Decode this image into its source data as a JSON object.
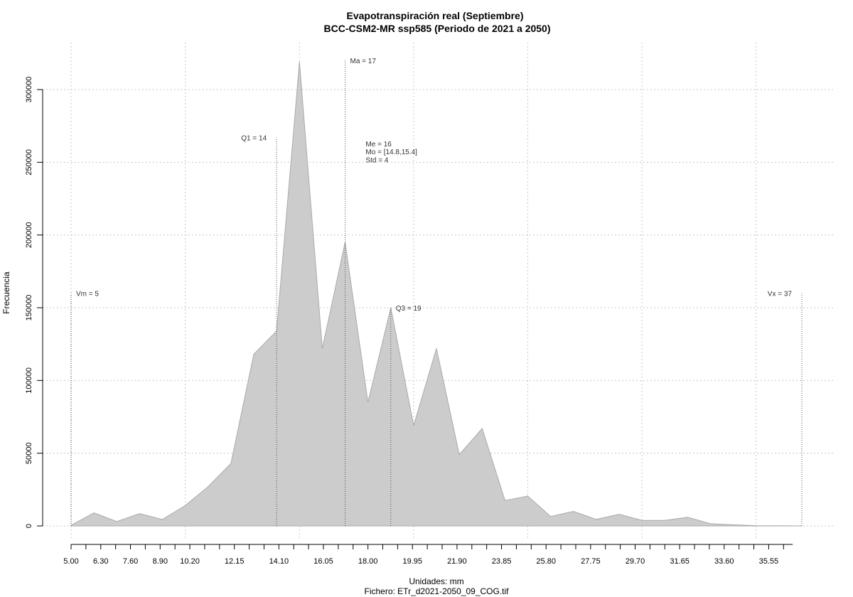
{
  "chart_data": {
    "type": "area",
    "title": "Evapotranspiración real (Septiembre)",
    "subtitle": "BCC-CSM2-MR ssp585 (Periodo de 2021 a 2050)",
    "xlabel": "Unidades: mm",
    "caption": "Fichero: ETr_d2021-2050_09_COG.tif",
    "ylabel": "Frecuencia",
    "xlim": [
      5.0,
      37.0
    ],
    "ylim": [
      0,
      320000
    ],
    "x_tick_labels": [
      "5.00",
      "6.30",
      "7.60",
      "8.90",
      "10.20",
      "12.15",
      "14.10",
      "16.05",
      "18.00",
      "19.95",
      "21.90",
      "23.85",
      "25.80",
      "27.75",
      "29.70",
      "31.65",
      "33.60",
      "35.55"
    ],
    "y_tick_labels": [
      "0",
      "50000",
      "100000",
      "150000",
      "200000",
      "250000",
      "300000"
    ],
    "grid": true,
    "fill_color": "#cccccc",
    "stroke_color": "#aaaaaa",
    "points": [
      {
        "x": 5.0,
        "y": 500
      },
      {
        "x": 6.0,
        "y": 9000
      },
      {
        "x": 7.0,
        "y": 3000
      },
      {
        "x": 8.0,
        "y": 8500
      },
      {
        "x": 9.0,
        "y": 4500
      },
      {
        "x": 10.0,
        "y": 14000
      },
      {
        "x": 11.0,
        "y": 27000
      },
      {
        "x": 12.0,
        "y": 43000
      },
      {
        "x": 13.0,
        "y": 118000
      },
      {
        "x": 14.0,
        "y": 134000
      },
      {
        "x": 15.0,
        "y": 319000
      },
      {
        "x": 16.0,
        "y": 122000
      },
      {
        "x": 17.0,
        "y": 195000
      },
      {
        "x": 18.0,
        "y": 85000
      },
      {
        "x": 19.0,
        "y": 150000
      },
      {
        "x": 20.0,
        "y": 69000
      },
      {
        "x": 21.0,
        "y": 122000
      },
      {
        "x": 22.0,
        "y": 49000
      },
      {
        "x": 23.0,
        "y": 67000
      },
      {
        "x": 24.0,
        "y": 17500
      },
      {
        "x": 25.0,
        "y": 20500
      },
      {
        "x": 26.0,
        "y": 6500
      },
      {
        "x": 27.0,
        "y": 10000
      },
      {
        "x": 28.0,
        "y": 4500
      },
      {
        "x": 29.0,
        "y": 8000
      },
      {
        "x": 30.0,
        "y": 3800
      },
      {
        "x": 31.0,
        "y": 3800
      },
      {
        "x": 32.0,
        "y": 6000
      },
      {
        "x": 33.0,
        "y": 1500
      },
      {
        "x": 34.0,
        "y": 800
      },
      {
        "x": 35.0,
        "y": 200
      },
      {
        "x": 36.0,
        "y": 100
      },
      {
        "x": 37.0,
        "y": 0
      }
    ],
    "markers": [
      {
        "x": 5.0,
        "y_top": 160000,
        "label": "Vm = 5",
        "anchor": "start"
      },
      {
        "x": 14.0,
        "y_top": 267000,
        "label": "Q1 = 14",
        "anchor": "end"
      },
      {
        "x": 17.0,
        "y_top": 320000,
        "label": "Ma = 17",
        "anchor": "start"
      },
      {
        "x": 19.0,
        "y_top": 150000,
        "label": "Q3 = 19",
        "anchor": "start"
      },
      {
        "x": 37.0,
        "y_top": 160000,
        "label": "Vx = 37",
        "anchor": "end"
      }
    ],
    "stats_annotation": {
      "x": 17.9,
      "lines": [
        {
          "y": 261000,
          "text": "Me = 16"
        },
        {
          "y": 255500,
          "text": "Mo = [14.8,15.4]"
        },
        {
          "y": 250000,
          "text": "Std = 4"
        }
      ]
    }
  }
}
